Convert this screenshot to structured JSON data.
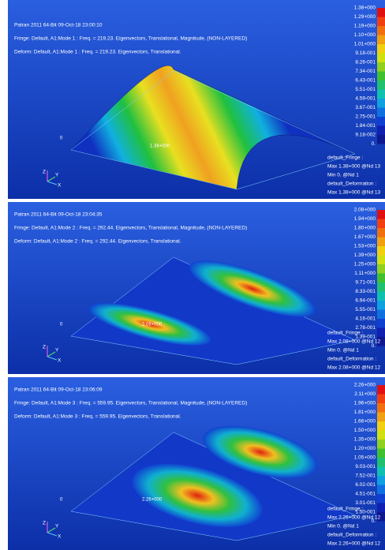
{
  "panels": [
    {
      "header": {
        "title": "Patran 2011 64-Bit 09-Oct-18 23:00:10",
        "fringe": "Fringe: Default, A1:Mode 1 : Freq. = 219.23. Eigenvectors, Translational, Magnitude, (NON-LAYERED)",
        "deform": "Deform: Default, A1:Mode 1 : Freq. = 219.23. Eigenvectors, Translational."
      },
      "legend": [
        "1.38+000",
        "1.29+000",
        "1.19+000",
        "1.10+000",
        "1.01+000",
        "9.18-001",
        "8.26-001",
        "7.34-001",
        "6.43-001",
        "5.51-001",
        "4.59-001",
        "3.67-001",
        "2.75-001",
        "1.84-001",
        "9.18-002",
        "0."
      ],
      "footer": [
        "default_Fringe :",
        "Max 1.38+000 @Nd 13",
        "Min 0. @Nd 1",
        "default_Deformation :",
        "Max 1.38+000 @Nd 13"
      ],
      "annotations": {
        "max": "1.38+000",
        "origin": "0"
      },
      "triad": {
        "z": "Z",
        "y": "Y",
        "x": "X"
      }
    },
    {
      "header": {
        "title": "Patran 2011 64-Bit 09-Oct-18 23:04:35",
        "fringe": "Fringe: Default, A1:Mode 2 : Freq. = 292.44. Eigenvectors, Translational, Magnitude, (NON-LAYERED)",
        "deform": "Deform: Default, A1:Mode 2 : Freq. = 292.44. Eigenvectors, Translational."
      },
      "legend": [
        "2.08+000",
        "1.94+000",
        "1.80+000",
        "1.67+000",
        "1.53+000",
        "1.39+000",
        "1.25+000",
        "1.11+000",
        "9.71-001",
        "8.33-001",
        "6.94-001",
        "5.55-001",
        "4.16-001",
        "2.78-001",
        "1.39-001",
        "0."
      ],
      "footer": [
        "default_Fringe :",
        "Max 2.08+000 @Nd 12",
        "Min 0. @Nd 1",
        "default_Deformation :",
        "Max 2.08+000 @Nd 12"
      ],
      "annotations": {
        "max": "2.08+000",
        "origin": "0"
      },
      "triad": {
        "z": "Z",
        "y": "Y",
        "x": "X"
      }
    },
    {
      "header": {
        "title": "Patran 2011 64-Bit 09-Oct-18 23:06:09",
        "fringe": "Fringe: Default, A1:Mode 3 : Freq. = 559.95. Eigenvectors, Translational, Magnitude, (NON-LAYERED)",
        "deform": "Deform: Default, A1:Mode 3 : Freq. = 559.95. Eigenvectors, Translational."
      },
      "legend": [
        "2.26+000",
        "2.11+000",
        "1.96+000",
        "1.81+000",
        "1.66+000",
        "1.50+000",
        "1.35+000",
        "1.20+000",
        "1.05+000",
        "9.03-001",
        "7.52-001",
        "6.02-001",
        "4.51-001",
        "3.01-001",
        "1.50-001",
        "0."
      ],
      "footer": [
        "default_Fringe :",
        "Max 2.26+000 @Nd 12",
        "Min 0. @Nd 1",
        "default_Deformation :",
        "Max 2.26+000 @Nd 12"
      ],
      "annotations": {
        "max": "2.26+000",
        "origin": "0"
      },
      "triad": {
        "z": "Z",
        "y": "Y",
        "x": "X"
      }
    }
  ]
}
